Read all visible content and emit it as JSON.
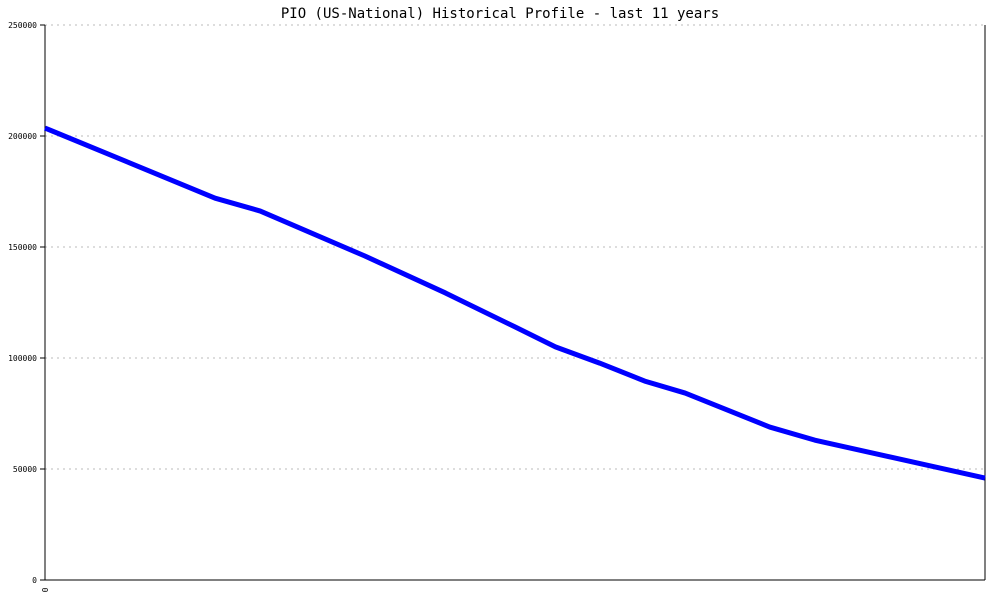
{
  "chart_data": {
    "type": "line",
    "title": "PIO (US-National) Historical Profile - last 11 years",
    "xlabel": "",
    "ylabel": "",
    "x_tick_labels": [
      "0"
    ],
    "ylim": [
      0,
      250000
    ],
    "y_ticks": [
      0,
      50000,
      100000,
      150000,
      200000,
      250000
    ],
    "grid": "horizontal dotted",
    "line_color": "#0000ff",
    "series": [
      {
        "x": [
          0,
          0.181,
          0.229,
          0.34,
          0.426,
          0.5,
          0.543,
          0.59,
          0.638,
          0.681,
          0.771,
          0.819,
          1.0
        ],
        "values": [
          203600,
          172000,
          166200,
          146000,
          129300,
          114000,
          105000,
          97700,
          89600,
          84200,
          68900,
          63000,
          45900
        ]
      }
    ]
  }
}
